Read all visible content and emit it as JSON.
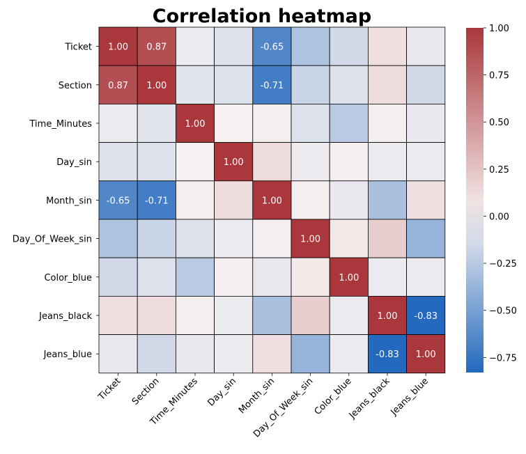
{
  "chart_data": {
    "type": "heatmap",
    "title": "Correlation heatmap",
    "xlabel": "",
    "ylabel": "",
    "row_labels": [
      "Ticket",
      "Section",
      "Time_Minutes",
      "Day_sin",
      "Month_sin",
      "Day_Of_Week_sin",
      "Color_blue",
      "Jeans_black",
      "Jeans_blue"
    ],
    "col_labels": [
      "Ticket",
      "Section",
      "Time_Minutes",
      "Day_sin",
      "Month_sin",
      "Day_Of_Week_sin",
      "Color_blue",
      "Jeans_black",
      "Jeans_blue"
    ],
    "values": [
      [
        1.0,
        0.87,
        -0.05,
        -0.1,
        -0.65,
        -0.28,
        -0.15,
        0.1,
        -0.06
      ],
      [
        0.87,
        1.0,
        -0.08,
        -0.1,
        -0.71,
        -0.18,
        -0.1,
        0.12,
        -0.15
      ],
      [
        -0.05,
        -0.08,
        1.0,
        0.01,
        0.02,
        -0.1,
        -0.24,
        0.02,
        -0.06
      ],
      [
        -0.1,
        -0.1,
        0.01,
        1.0,
        0.12,
        -0.04,
        0.02,
        -0.05,
        -0.05
      ],
      [
        -0.65,
        -0.71,
        0.02,
        0.12,
        1.0,
        0.02,
        -0.06,
        -0.3,
        0.1
      ],
      [
        -0.28,
        -0.18,
        -0.1,
        -0.04,
        0.02,
        1.0,
        0.05,
        0.2,
        -0.38
      ],
      [
        -0.15,
        -0.1,
        -0.24,
        0.02,
        -0.06,
        0.05,
        1.0,
        -0.05,
        -0.05
      ],
      [
        0.1,
        0.12,
        0.02,
        -0.05,
        -0.3,
        0.2,
        -0.05,
        1.0,
        -0.83
      ],
      [
        -0.06,
        -0.15,
        -0.06,
        -0.05,
        0.1,
        -0.38,
        -0.05,
        -0.83,
        1.0
      ]
    ],
    "annotated": [
      [
        true,
        true,
        false,
        false,
        true,
        false,
        false,
        false,
        false
      ],
      [
        true,
        true,
        false,
        false,
        true,
        false,
        false,
        false,
        false
      ],
      [
        false,
        false,
        true,
        false,
        false,
        false,
        false,
        false,
        false
      ],
      [
        false,
        false,
        false,
        true,
        false,
        false,
        false,
        false,
        false
      ],
      [
        true,
        true,
        false,
        false,
        true,
        false,
        false,
        false,
        false
      ],
      [
        false,
        false,
        false,
        false,
        false,
        true,
        false,
        false,
        false
      ],
      [
        false,
        false,
        false,
        false,
        false,
        false,
        true,
        false,
        false
      ],
      [
        false,
        false,
        false,
        false,
        false,
        false,
        false,
        true,
        true
      ],
      [
        false,
        false,
        false,
        false,
        false,
        false,
        false,
        true,
        true
      ]
    ],
    "colorbar": {
      "vmin": -0.83,
      "vmax": 1.0,
      "ticks": [
        1.0,
        0.75,
        0.5,
        0.25,
        0.0,
        -0.25,
        -0.5,
        -0.75
      ],
      "tick_labels": [
        "1.00",
        "0.75",
        "0.50",
        "0.25",
        "0.00",
        "−0.25",
        "−0.50",
        "−0.75"
      ],
      "colormap": "vlag (diverging blue-white-red)",
      "color_low": "#2369bd",
      "color_mid": "#f7f2f2",
      "color_high": "#a9373b"
    },
    "grid": true,
    "gridline_color": "#000000",
    "annotation_text_color": "#ffffff"
  }
}
